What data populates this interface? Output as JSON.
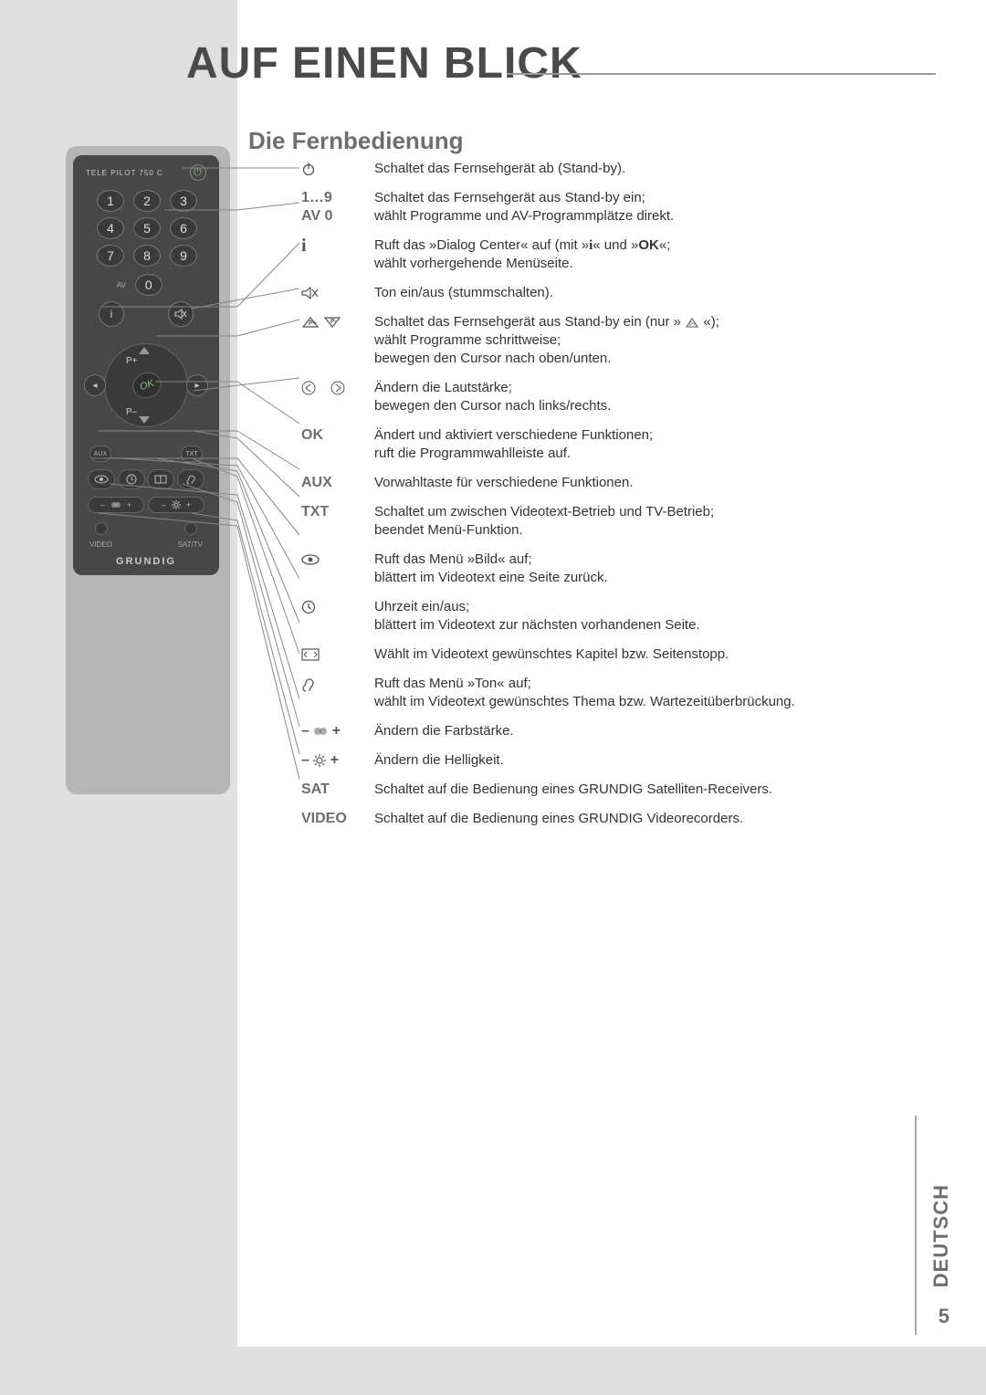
{
  "heading": "AUF EINEN BLICK",
  "subheading": "Die Fernbedienung",
  "remote": {
    "model": "TELE PILOT 750 C",
    "numbers": [
      "1",
      "2",
      "3",
      "4",
      "5",
      "6",
      "7",
      "8",
      "9"
    ],
    "zero": "0",
    "av_label": "AV",
    "ok": "OK",
    "pplus": "P+",
    "pminus": "P–",
    "aux": "AUX",
    "txt": "TXT",
    "video": "VIDEO",
    "sattv": "SAT/TV",
    "brand": "GRUNDIG"
  },
  "rows": [
    {
      "key_type": "icon",
      "icon": "power",
      "text": "Schaltet das Fernsehgerät ab (Stand-by)."
    },
    {
      "key_type": "text2",
      "key1": "1…9",
      "key2": "AV 0",
      "text": "Schaltet das Fernsehgerät aus Stand-by ein;\nwählt Programme und AV-Programmplätze direkt."
    },
    {
      "key_type": "icon",
      "icon": "info",
      "text": "Ruft das »Dialog Center« auf (mit »i« und »OK«;\nwählt vorhergehende Menüseite."
    },
    {
      "key_type": "icon",
      "icon": "mute",
      "text": "Ton ein/aus (stummschalten)."
    },
    {
      "key_type": "icon",
      "icon": "updown",
      "text": "Schaltet das Fernsehgerät aus Stand-by ein (nur » △ «);\nwählt Programme schrittweise;\nbewegen den Cursor nach oben/unten."
    },
    {
      "key_type": "icon",
      "icon": "leftright",
      "text": "Ändern die Lautstärke;\nbewegen den Cursor nach links/rechts."
    },
    {
      "key_type": "text",
      "key": "OK",
      "text": "Ändert und aktiviert verschiedene Funktionen;\nruft die Programmwahlleiste auf."
    },
    {
      "key_type": "text",
      "key": "AUX",
      "text": "Vorwahltaste für verschiedene Funktionen."
    },
    {
      "key_type": "text",
      "key": "TXT",
      "text": "Schaltet um zwischen Videotext-Betrieb und TV-Betrieb;\nbeendet Menü-Funktion."
    },
    {
      "key_type": "icon",
      "icon": "eye",
      "text": "Ruft das Menü »Bild« auf;\nblättert im Videotext eine Seite zurück."
    },
    {
      "key_type": "icon",
      "icon": "clock",
      "text": "Uhrzeit ein/aus;\nblättert im Videotext zur nächsten vorhandenen Seite."
    },
    {
      "key_type": "icon",
      "icon": "pages",
      "text": "Wählt im Videotext gewünschtes Kapitel bzw. Seitenstopp."
    },
    {
      "key_type": "icon",
      "icon": "ear",
      "text": "Ruft das Menü »Ton« auf;\nwählt im Videotext gewünschtes Thema bzw. Wartezeitüberbrückung."
    },
    {
      "key_type": "icon",
      "icon": "color",
      "text": "Ändern die Farbstärke."
    },
    {
      "key_type": "icon",
      "icon": "bright",
      "text": "Ändern die Helligkeit."
    },
    {
      "key_type": "text",
      "key": "SAT",
      "text": "Schaltet auf die Bedienung eines GRUNDIG Satelliten-Receivers."
    },
    {
      "key_type": "text",
      "key": "VIDEO",
      "text": "Schaltet auf die Bedienung eines GRUNDIG Videorecorders."
    }
  ],
  "footer": {
    "page": "5",
    "lang": "DEUTSCH"
  },
  "colors": {
    "page_grey": "#e0e0e0",
    "heading_grey": "#4a4a4a",
    "sub_grey": "#6e6e6e",
    "remote_body": "#474747",
    "text_body": "#333333"
  }
}
